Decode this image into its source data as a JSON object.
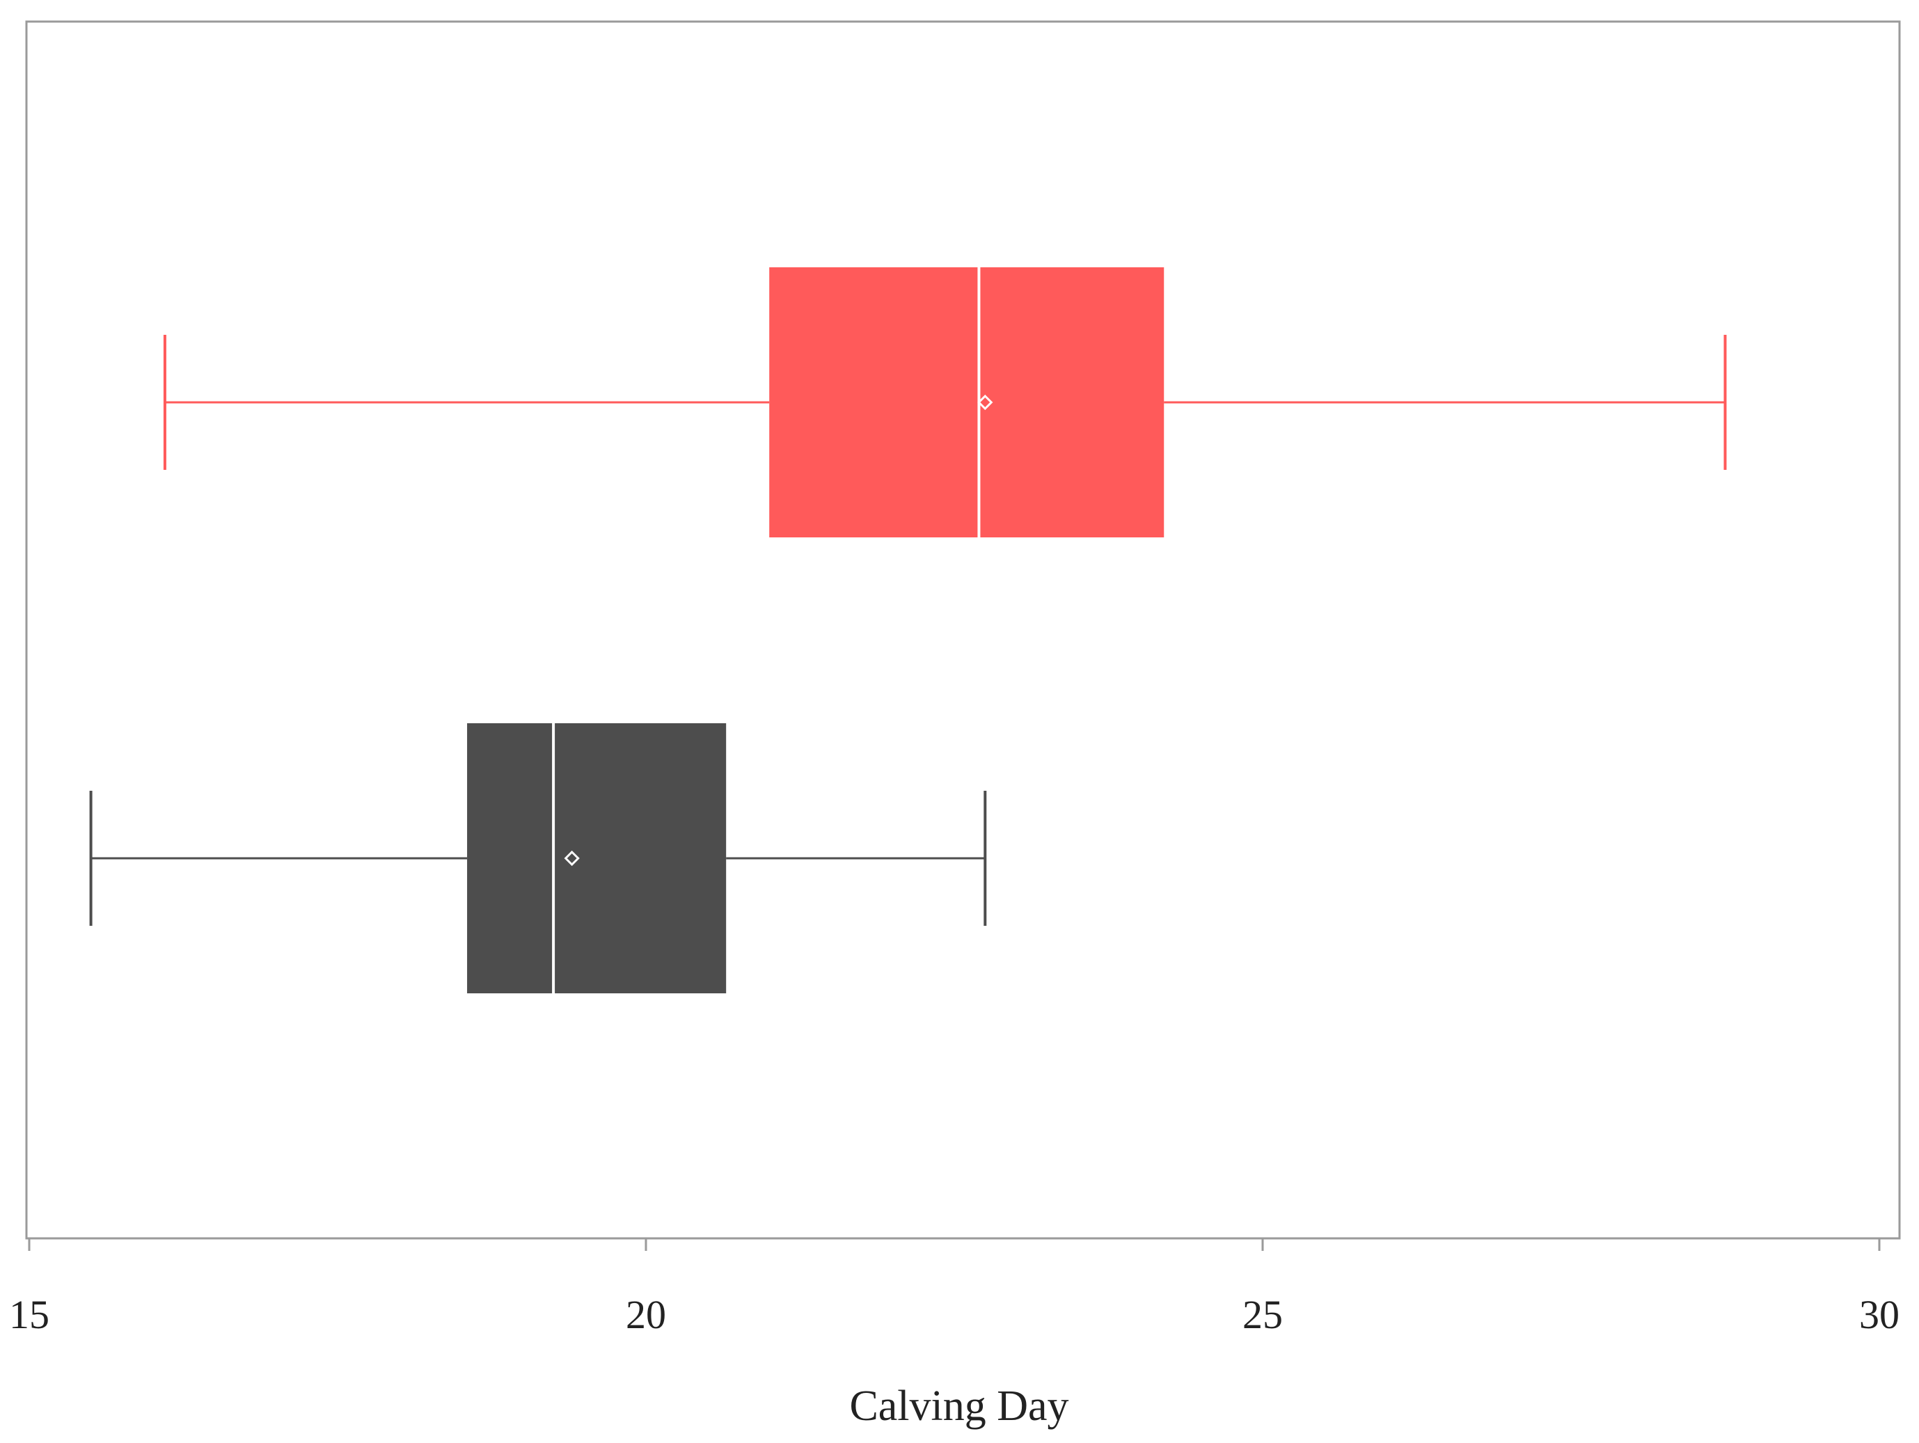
{
  "chart_data": {
    "type": "box",
    "orientation": "horizontal",
    "title": "",
    "xlabel": "Calving Day",
    "ylabel": "",
    "xlim": [
      15,
      30
    ],
    "xticks": [
      15,
      20,
      25,
      30
    ],
    "tick_labels": [
      "15",
      "20",
      "25",
      "30"
    ],
    "grid": false,
    "legend": "none",
    "series": [
      {
        "color": "#ff5a5a",
        "min": 16.1,
        "q1": 21.0,
        "median": 22.7,
        "q3": 24.2,
        "max": 28.75,
        "mean": 22.75
      },
      {
        "color": "#4d4d4d",
        "min": 15.5,
        "q1": 18.55,
        "median": 19.25,
        "q3": 20.65,
        "max": 22.75,
        "mean": 19.4
      }
    ]
  }
}
